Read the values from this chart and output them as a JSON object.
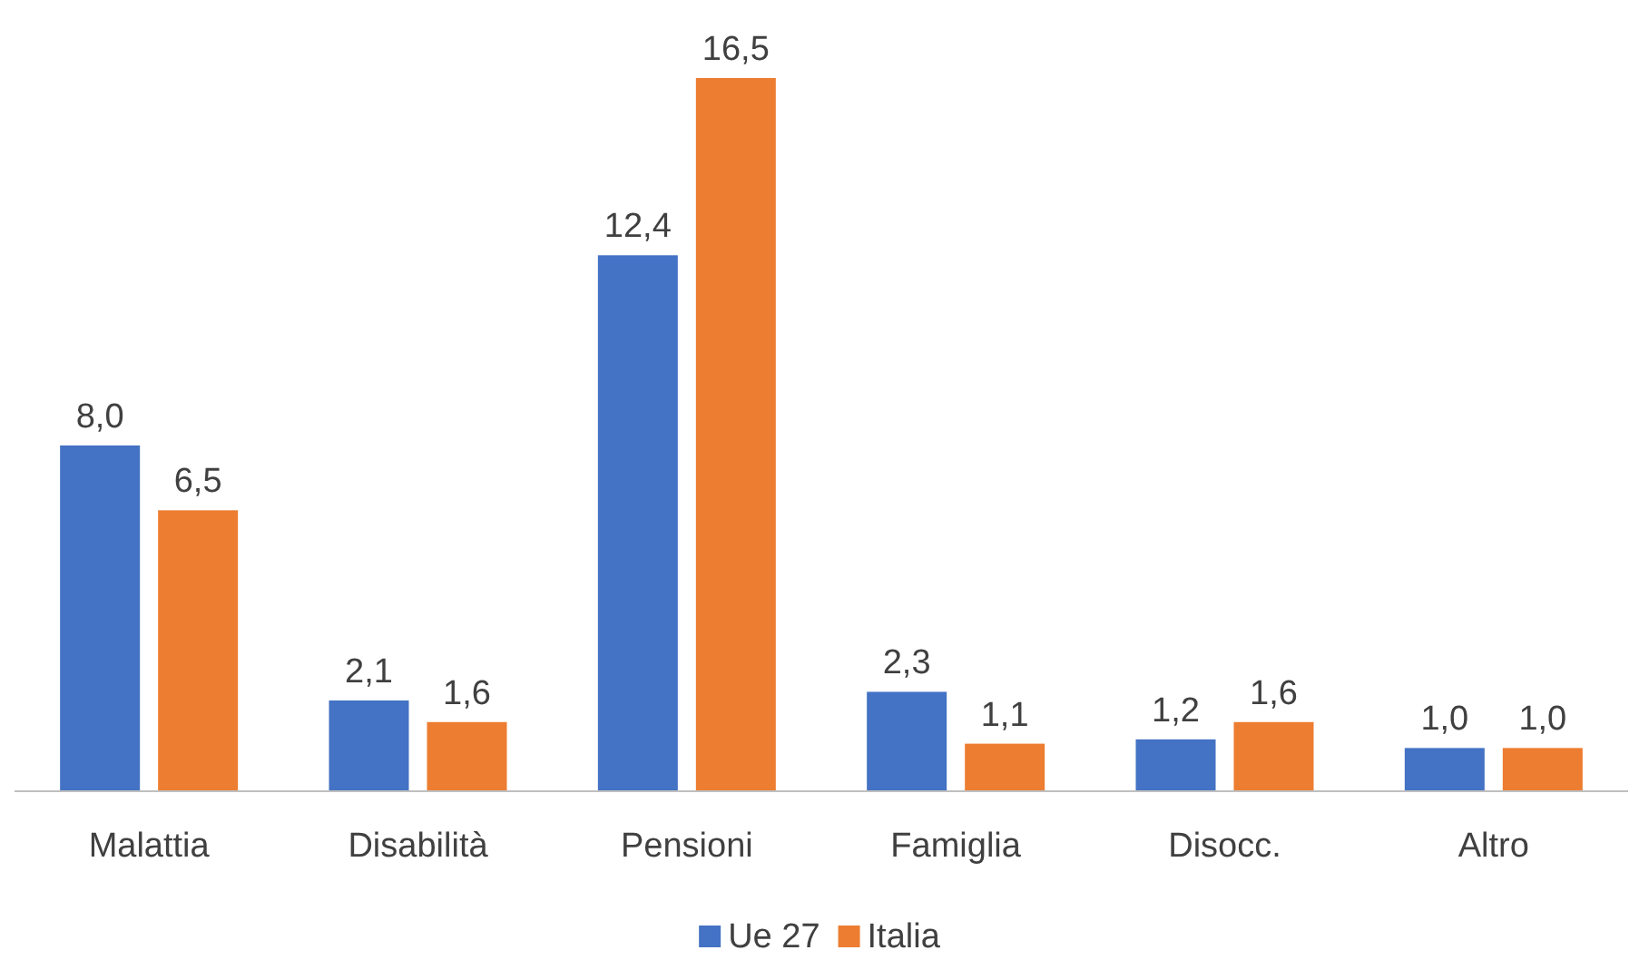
{
  "chart_data": {
    "type": "bar",
    "categories": [
      "Malattia",
      "Disabilità",
      "Pensioni",
      "Famiglia",
      "Disocc.",
      "Altro"
    ],
    "series": [
      {
        "name": "Ue 27",
        "color": "#4472c4",
        "values": [
          8.0,
          2.1,
          12.4,
          2.3,
          1.2,
          1.0
        ],
        "value_labels": [
          "8,0",
          "2,1",
          "12,4",
          "2,3",
          "1,2",
          "1,0"
        ]
      },
      {
        "name": "Italia",
        "color": "#ed7d31",
        "values": [
          6.5,
          1.6,
          16.5,
          1.1,
          1.6,
          1.0
        ],
        "value_labels": [
          "6,5",
          "1,6",
          "16,5",
          "1,1",
          "1,6",
          "1,0"
        ]
      }
    ],
    "legend": "bottom",
    "grid": false
  }
}
